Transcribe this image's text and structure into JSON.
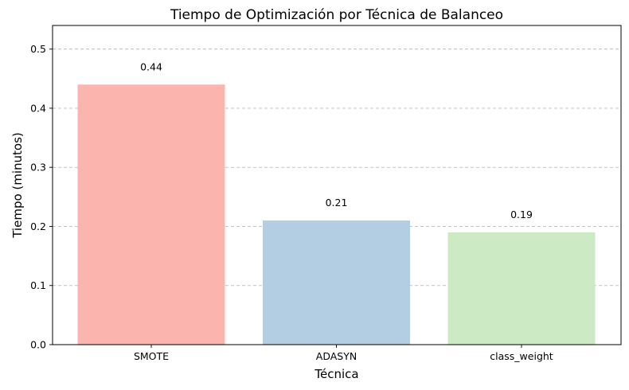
{
  "chart_data": {
    "type": "bar",
    "title": "Tiempo de Optimización por Técnica de Balanceo",
    "xlabel": "Técnica",
    "ylabel": "Tiempo (minutos)",
    "categories": [
      "SMOTE",
      "ADASYN",
      "class_weight"
    ],
    "values": [
      0.44,
      0.21,
      0.19
    ],
    "data_labels": [
      "0.44",
      "0.21",
      "0.19"
    ],
    "colors": [
      "#fbb4ae",
      "#b3cde3",
      "#ccebc5"
    ],
    "ylim": [
      0,
      0.54
    ],
    "yticks": [
      0.0,
      0.1,
      0.2,
      0.3,
      0.4,
      0.5
    ],
    "ytick_labels": [
      "0.0",
      "0.1",
      "0.2",
      "0.3",
      "0.4",
      "0.5"
    ],
    "grid": "y-dashed",
    "legend": "none"
  }
}
